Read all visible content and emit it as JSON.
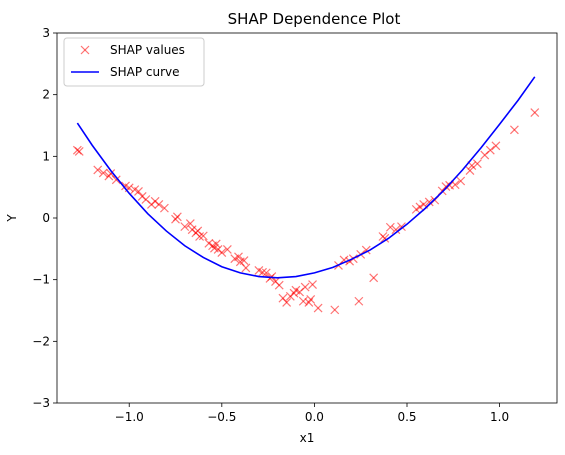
{
  "chart_data": {
    "type": "scatter",
    "title": "SHAP Dependence Plot",
    "xlabel": "x1",
    "ylabel": "Y",
    "xlim": [
      -1.39,
      1.31
    ],
    "ylim": [
      -3,
      3
    ],
    "xticks": [
      -1.0,
      -0.5,
      0.0,
      0.5,
      1.0
    ],
    "xtick_labels": [
      "−1.0",
      "−0.5",
      "0.0",
      "0.5",
      "1.0"
    ],
    "yticks": [
      -3,
      -2,
      -1,
      0,
      1,
      2,
      3
    ],
    "ytick_labels": [
      "−3",
      "−2",
      "−1",
      "0",
      "1",
      "2",
      "3"
    ],
    "grid": false,
    "legend_position": "top-left",
    "series": [
      {
        "name": "SHAP values",
        "kind": "markers",
        "marker": "x",
        "color": "#ff0000",
        "x": [
          -1.28,
          -1.27,
          -1.17,
          -1.14,
          -1.11,
          -1.1,
          -1.07,
          -1.02,
          -1.0,
          -0.97,
          -0.95,
          -0.93,
          -0.91,
          -0.88,
          -0.86,
          -0.84,
          -0.81,
          -0.75,
          -0.74,
          -0.7,
          -0.67,
          -0.66,
          -0.64,
          -0.63,
          -0.62,
          -0.6,
          -0.57,
          -0.55,
          -0.54,
          -0.53,
          -0.52,
          -0.5,
          -0.47,
          -0.43,
          -0.41,
          -0.4,
          -0.38,
          -0.37,
          -0.3,
          -0.28,
          -0.26,
          -0.24,
          -0.23,
          -0.21,
          -0.19,
          -0.17,
          -0.15,
          -0.13,
          -0.11,
          -0.1,
          -0.08,
          -0.06,
          -0.05,
          -0.03,
          -0.02,
          -0.01,
          0.02,
          0.11,
          0.13,
          0.16,
          0.19,
          0.21,
          0.24,
          0.25,
          0.28,
          0.32,
          0.37,
          0.38,
          0.41,
          0.44,
          0.47,
          0.55,
          0.57,
          0.59,
          0.62,
          0.65,
          0.69,
          0.71,
          0.73,
          0.76,
          0.79,
          0.84,
          0.85,
          0.88,
          0.92,
          0.95,
          0.98,
          1.08,
          1.19
        ],
        "y": [
          1.1,
          1.08,
          0.78,
          0.73,
          0.68,
          0.72,
          0.62,
          0.52,
          0.49,
          0.46,
          0.43,
          0.35,
          0.3,
          0.22,
          0.27,
          0.22,
          0.16,
          -0.02,
          0.02,
          -0.14,
          -0.09,
          -0.19,
          -0.24,
          -0.21,
          -0.3,
          -0.29,
          -0.41,
          -0.45,
          -0.49,
          -0.42,
          -0.51,
          -0.56,
          -0.51,
          -0.66,
          -0.63,
          -0.71,
          -0.69,
          -0.81,
          -0.85,
          -0.88,
          -0.89,
          -0.98,
          -0.95,
          -1.03,
          -1.09,
          -1.3,
          -1.37,
          -1.27,
          -1.22,
          -1.17,
          -1.2,
          -1.35,
          -1.12,
          -1.37,
          -1.32,
          -1.08,
          -1.46,
          -1.49,
          -0.77,
          -0.68,
          -0.7,
          -0.66,
          -1.35,
          -0.59,
          -0.52,
          -0.97,
          -0.3,
          -0.33,
          -0.15,
          -0.19,
          -0.14,
          0.14,
          0.18,
          0.22,
          0.26,
          0.29,
          0.44,
          0.51,
          0.53,
          0.54,
          0.6,
          0.77,
          0.85,
          0.88,
          1.02,
          1.1,
          1.17,
          1.43,
          1.71
        ]
      },
      {
        "name": "SHAP curve",
        "kind": "line",
        "color": "#0000ff",
        "x": [
          -1.28,
          -1.2,
          -1.1,
          -1.0,
          -0.9,
          -0.8,
          -0.7,
          -0.6,
          -0.5,
          -0.4,
          -0.3,
          -0.2,
          -0.1,
          0.0,
          0.1,
          0.2,
          0.3,
          0.4,
          0.5,
          0.6,
          0.7,
          0.8,
          0.9,
          1.0,
          1.1,
          1.19
        ],
        "y": [
          1.54,
          1.18,
          0.77,
          0.4,
          0.07,
          -0.21,
          -0.45,
          -0.64,
          -0.79,
          -0.89,
          -0.95,
          -0.97,
          -0.95,
          -0.89,
          -0.8,
          -0.67,
          -0.52,
          -0.33,
          -0.1,
          0.16,
          0.45,
          0.78,
          1.14,
          1.52,
          1.91,
          2.29
        ]
      }
    ]
  }
}
